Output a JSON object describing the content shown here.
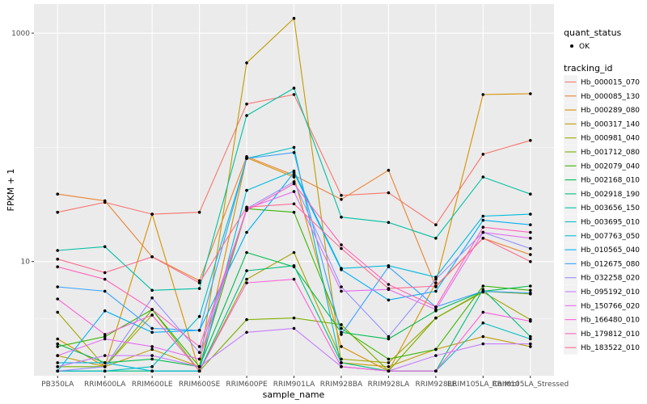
{
  "chart_data": {
    "type": "line",
    "xlabel": "sample_name",
    "ylabel": "FPKM + 1",
    "y_scale": "log10",
    "ylim": [
      1.0,
      1800
    ],
    "y_ticks": [
      10,
      1000
    ],
    "y_tick_labels": [
      "10",
      "1000"
    ],
    "grid": true,
    "legend_position": "right",
    "categories": [
      "PB350LA",
      "RRIM600LA",
      "RRIM600LE",
      "RRIM600SE",
      "RRIM600PE",
      "RRIM901LA",
      "RRIM928BA",
      "RRIM928LA",
      "RRIM928LE",
      "RRIM105LA_Control",
      "RRIM105LA_Stressed"
    ],
    "legend_status": {
      "title": "quant_status",
      "items": [
        "OK"
      ]
    },
    "legend_tracking": {
      "title": "tracking_id"
    },
    "series": [
      {
        "name": "Hb_000015_070",
        "color": "#F8766D",
        "values": [
          27,
          33,
          26,
          27,
          240,
          290,
          38,
          40,
          21,
          87,
          115
        ]
      },
      {
        "name": "Hb_000085_130",
        "color": "#EA8331",
        "values": [
          39,
          34,
          11,
          6.8,
          83,
          57,
          35,
          63,
          6,
          16,
          11.5
        ]
      },
      {
        "name": "Hb_000289_080",
        "color": "#D89000",
        "values": [
          2.1,
          1.2,
          26,
          1.1,
          81,
          55,
          1.8,
          1.1,
          6.5,
          290,
          295
        ]
      },
      {
        "name": "Hb_000317_140",
        "color": "#C09B00",
        "values": [
          1.5,
          1.2,
          1.7,
          1.2,
          550,
          1350,
          1.3,
          1.2,
          1.7,
          2.2,
          1.8
        ]
      },
      {
        "name": "Hb_000981_040",
        "color": "#A3A500",
        "values": [
          3.6,
          1.2,
          3.4,
          1.1,
          7,
          12,
          1.4,
          1.3,
          3.2,
          5.4,
          3.1
        ]
      },
      {
        "name": "Hb_001712_080",
        "color": "#7CAE00",
        "values": [
          1.2,
          1.2,
          3.8,
          1.1,
          3.1,
          3.2,
          2.8,
          1.1,
          3.2,
          5.5,
          5.2
        ]
      },
      {
        "name": "Hb_002079_040",
        "color": "#39B600",
        "values": [
          1.8,
          2.2,
          3.8,
          1.2,
          29,
          27,
          2.6,
          1.4,
          1.7,
          6.1,
          5.6
        ]
      },
      {
        "name": "Hb_002168_010",
        "color": "#00BB4E",
        "values": [
          1.9,
          1.3,
          1.4,
          1.2,
          12,
          9,
          2.4,
          2.1,
          3.7,
          5.5,
          6.1
        ]
      },
      {
        "name": "Hb_002918_190",
        "color": "#00BF7D",
        "values": [
          1.1,
          1.1,
          1.1,
          1.1,
          8.3,
          9.2,
          1.3,
          1.1,
          1.1,
          5.7,
          2.2
        ]
      },
      {
        "name": "Hb_003656_150",
        "color": "#00C1A3",
        "values": [
          12.5,
          13.5,
          5.6,
          5.8,
          190,
          330,
          24.5,
          22,
          16,
          55,
          39
        ]
      },
      {
        "name": "Hb_003695_010",
        "color": "#00BFC4",
        "values": [
          1.1,
          1.1,
          1.2,
          3.3,
          80,
          100,
          1.2,
          1.1,
          1.1,
          2.9,
          2.1
        ]
      },
      {
        "name": "Hb_007763_050",
        "color": "#00BAE0",
        "values": [
          1.3,
          1.3,
          1.1,
          1.1,
          42,
          62,
          8.7,
          9.2,
          7.3,
          25,
          26
        ]
      },
      {
        "name": "Hb_010565_040",
        "color": "#00B0F6",
        "values": [
          1.1,
          3.7,
          2.4,
          2.5,
          18,
          60,
          8.5,
          4.6,
          5.5,
          23,
          21
        ]
      },
      {
        "name": "Hb_012675_080",
        "color": "#35A2FF",
        "values": [
          6,
          5.5,
          2.6,
          2.5,
          80,
          90,
          2.3,
          9,
          4,
          5.5,
          5.3
        ]
      },
      {
        "name": "Hb_032258_020",
        "color": "#9590FF",
        "values": [
          1.1,
          1.2,
          4.8,
          1.6,
          29,
          50,
          6,
          2.2,
          7,
          18,
          13
        ]
      },
      {
        "name": "Hb_095192_010",
        "color": "#C77CFF",
        "values": [
          1.2,
          1.5,
          1.5,
          1.2,
          2.4,
          2.6,
          1.2,
          1.1,
          1.5,
          1.9,
          1.9
        ]
      },
      {
        "name": "Hb_150766_020",
        "color": "#E76BF3",
        "values": [
          1.5,
          2.1,
          1.8,
          1.4,
          29,
          41,
          5.5,
          5.7,
          3.8,
          18,
          16
        ]
      },
      {
        "name": "Hb_166480_010",
        "color": "#FA62DB",
        "values": [
          4.7,
          2.3,
          3.4,
          1.1,
          6.5,
          7,
          1.2,
          1.1,
          1.1,
          3.6,
          3
        ]
      },
      {
        "name": "Hb_179812_010",
        "color": "#FF62BC",
        "values": [
          9,
          7,
          3.8,
          1.8,
          28,
          48,
          14,
          6.3,
          4,
          20,
          18
        ]
      },
      {
        "name": "Hb_183522_010",
        "color": "#FF6C91",
        "values": [
          10.5,
          8,
          11,
          6.5,
          30,
          32,
          13,
          5.8,
          6.1,
          16,
          10
        ]
      }
    ]
  }
}
